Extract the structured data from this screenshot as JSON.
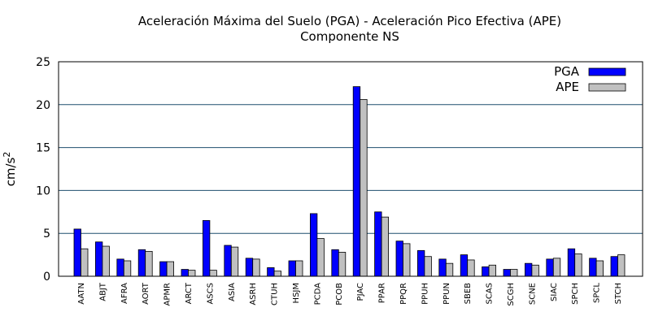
{
  "chart_data": {
    "type": "bar",
    "title": "Aceleración Máxima del Suelo (PGA) -  Aceleración Pico Efectiva (APE)",
    "subtitle": "Componente NS",
    "xlabel": "",
    "ylabel": "cm/s",
    "ylabel_superscript": "2",
    "ylim": [
      0,
      25
    ],
    "yticks": [
      "0",
      "5",
      "10",
      "15",
      "20",
      "25"
    ],
    "grid": true,
    "legend_position": "top-right",
    "categories": [
      "AATN",
      "ABJT",
      "AFRA",
      "AORT",
      "APMR",
      "ARCT",
      "ASCS",
      "ASIA",
      "ASRH",
      "CTUH",
      "HSJM",
      "PCDA",
      "PCOB",
      "PJAC",
      "PPAR",
      "PPQR",
      "PPUH",
      "PPUN",
      "SBEB",
      "SCAS",
      "SCGH",
      "SCNE",
      "SIAC",
      "SPCH",
      "SPCL",
      "STCH"
    ],
    "series": [
      {
        "name": "PGA",
        "color": "#0000ff",
        "values": [
          5.5,
          4.0,
          2.0,
          3.1,
          1.7,
          0.8,
          6.5,
          3.6,
          2.1,
          1.0,
          1.8,
          7.3,
          3.1,
          22.1,
          7.5,
          4.1,
          3.0,
          2.0,
          2.5,
          1.1,
          0.8,
          1.5,
          2.0,
          3.2,
          2.1,
          2.3
        ]
      },
      {
        "name": "APE",
        "color": "#c0c0c0",
        "values": [
          3.2,
          3.5,
          1.8,
          2.9,
          1.7,
          0.7,
          0.7,
          3.4,
          2.0,
          0.6,
          1.8,
          4.4,
          2.8,
          20.6,
          6.9,
          3.8,
          2.3,
          1.5,
          1.9,
          1.3,
          0.8,
          1.3,
          2.1,
          2.6,
          1.8,
          2.5
        ]
      }
    ]
  }
}
